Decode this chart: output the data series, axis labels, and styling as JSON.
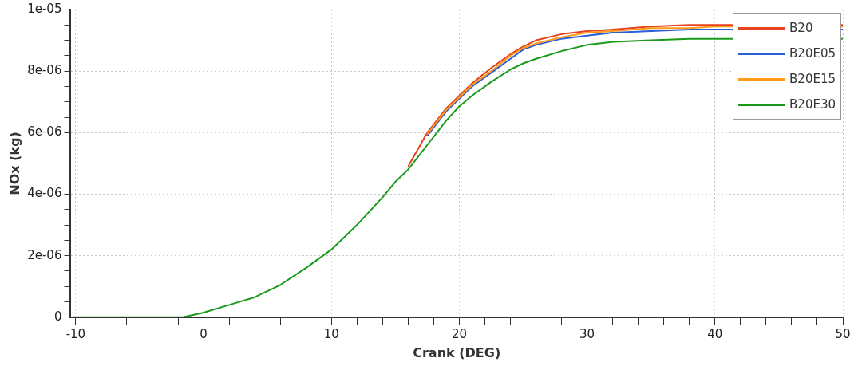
{
  "chart_data": {
    "type": "line",
    "xlabel": "Crank (DEG)",
    "ylabel": "NOx (kg)",
    "x": [
      -10.2,
      -1.6,
      0,
      2,
      4,
      6,
      8,
      10,
      12,
      14,
      15,
      16,
      17.5,
      19,
      20,
      21,
      22.5,
      24,
      25,
      26,
      28,
      30,
      32,
      35,
      38,
      40,
      45,
      50
    ],
    "xlim": [
      -10.4,
      50
    ],
    "xticks": [
      -10,
      {
        "value": -8,
        "label": null
      },
      {
        "value": -6,
        "label": null
      },
      {
        "value": -4,
        "label": null
      },
      {
        "value": -2,
        "label": null
      },
      0,
      {
        "value": 2,
        "label": null
      },
      {
        "value": 4,
        "label": null
      },
      {
        "value": 6,
        "label": null
      },
      {
        "value": 8,
        "label": null
      },
      10,
      {
        "value": 12,
        "label": null
      },
      {
        "value": 14,
        "label": null
      },
      {
        "value": 16,
        "label": null
      },
      {
        "value": 18,
        "label": null
      },
      20,
      {
        "value": 22,
        "label": null
      },
      {
        "value": 24,
        "label": null
      },
      {
        "value": 26,
        "label": null
      },
      {
        "value": 28,
        "label": null
      },
      30,
      {
        "value": 32,
        "label": null
      },
      {
        "value": 34,
        "label": null
      },
      {
        "value": 36,
        "label": null
      },
      {
        "value": 38,
        "label": null
      },
      40,
      {
        "value": 42,
        "label": null
      },
      {
        "value": 44,
        "label": null
      },
      {
        "value": 46,
        "label": null
      },
      {
        "value": 48,
        "label": null
      },
      50
    ],
    "ylim": [
      0,
      1e-05
    ],
    "yticks": [
      0,
      {
        "value": 5e-07,
        "label": null
      },
      {
        "value": 1e-06,
        "label": null
      },
      {
        "value": 1.5e-06,
        "label": null
      },
      {
        "value": 2e-06,
        "label": "2e-06"
      },
      {
        "value": 2.5e-06,
        "label": null
      },
      {
        "value": 3e-06,
        "label": null
      },
      {
        "value": 3.5e-06,
        "label": null
      },
      {
        "value": 4e-06,
        "label": "4e-06"
      },
      {
        "value": 4.5e-06,
        "label": null
      },
      {
        "value": 5e-06,
        "label": null
      },
      {
        "value": 5.5e-06,
        "label": null
      },
      {
        "value": 6e-06,
        "label": "6e-06"
      },
      {
        "value": 6.5e-06,
        "label": null
      },
      {
        "value": 7e-06,
        "label": null
      },
      {
        "value": 7.5e-06,
        "label": null
      },
      {
        "value": 8e-06,
        "label": "8e-06"
      },
      {
        "value": 8.5e-06,
        "label": null
      },
      {
        "value": 9e-06,
        "label": null
      },
      {
        "value": 9.5e-06,
        "label": null
      },
      {
        "value": 1e-05,
        "label": "1e-05"
      }
    ],
    "grid": true,
    "legend": "top right",
    "marker": "none",
    "line_style": "solid",
    "series": [
      {
        "name": "B20",
        "color": "#e8411b",
        "values": [
          null,
          null,
          null,
          null,
          null,
          null,
          null,
          null,
          null,
          null,
          null,
          4.9e-06,
          6e-06,
          6.8e-06,
          7.2e-06,
          7.6e-06,
          8.1e-06,
          8.55e-06,
          8.8e-06,
          9e-06,
          9.2e-06,
          9.3e-06,
          9.35e-06,
          9.45e-06,
          9.5e-06,
          9.5e-06,
          null,
          9.5e-06
        ]
      },
      {
        "name": "B20E05",
        "color": "#2a5fd6",
        "values": [
          null,
          null,
          null,
          null,
          null,
          null,
          null,
          null,
          null,
          null,
          null,
          null,
          5.9e-06,
          6.7e-06,
          7.1e-06,
          7.5e-06,
          7.95e-06,
          8.4e-06,
          8.7e-06,
          8.85e-06,
          9.05e-06,
          9.15e-06,
          9.25e-06,
          9.3e-06,
          9.35e-06,
          9.35e-06,
          null,
          9.35e-06
        ]
      },
      {
        "name": "B20E15",
        "color": "#ff9a1a",
        "values": [
          null,
          null,
          null,
          null,
          null,
          null,
          null,
          null,
          null,
          null,
          null,
          null,
          5.95e-06,
          6.75e-06,
          7.15e-06,
          7.55e-06,
          8e-06,
          8.5e-06,
          8.75e-06,
          8.9e-06,
          9.1e-06,
          9.25e-06,
          9.3e-06,
          9.4e-06,
          9.4e-06,
          9.45e-06,
          null,
          9.45e-06
        ]
      },
      {
        "name": "B20E30",
        "color": "#1a9a1a",
        "values": [
          0,
          0,
          1.5e-07,
          4e-07,
          6.5e-07,
          1.05e-06,
          1.6e-06,
          2.2e-06,
          3e-06,
          3.9e-06,
          4.4e-06,
          4.8e-06,
          5.6e-06,
          6.4e-06,
          6.85e-06,
          7.2e-06,
          7.65e-06,
          8.05e-06,
          8.25e-06,
          8.4e-06,
          8.65e-06,
          8.85e-06,
          8.95e-06,
          9e-06,
          9.05e-06,
          9.05e-06,
          null,
          9.05e-06
        ]
      }
    ]
  }
}
